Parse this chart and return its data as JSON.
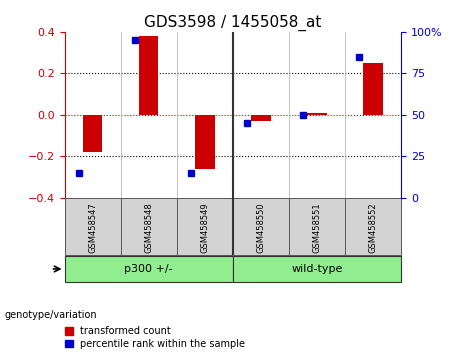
{
  "title": "GDS3598 / 1455058_at",
  "samples": [
    "GSM458547",
    "GSM458548",
    "GSM458549",
    "GSM458550",
    "GSM458551",
    "GSM458552"
  ],
  "red_values": [
    -0.18,
    0.38,
    -0.26,
    -0.03,
    0.01,
    0.25
  ],
  "blue_percentiles": [
    15,
    95,
    15,
    45,
    50,
    85
  ],
  "ylim": [
    -0.4,
    0.4
  ],
  "yticks_left": [
    -0.4,
    -0.2,
    0.0,
    0.2,
    0.4
  ],
  "yticks_right": [
    0,
    25,
    50,
    75,
    100
  ],
  "red_color": "#CC0000",
  "blue_color": "#0000CC",
  "bar_width": 0.35,
  "genotype_label": "genotype/variation",
  "legend_red": "transformed count",
  "legend_blue": "percentile rank within the sample",
  "background_color": "#ffffff",
  "group1_label": "p300 +/-",
  "group2_label": "wild-type",
  "group_color": "#90EE90"
}
